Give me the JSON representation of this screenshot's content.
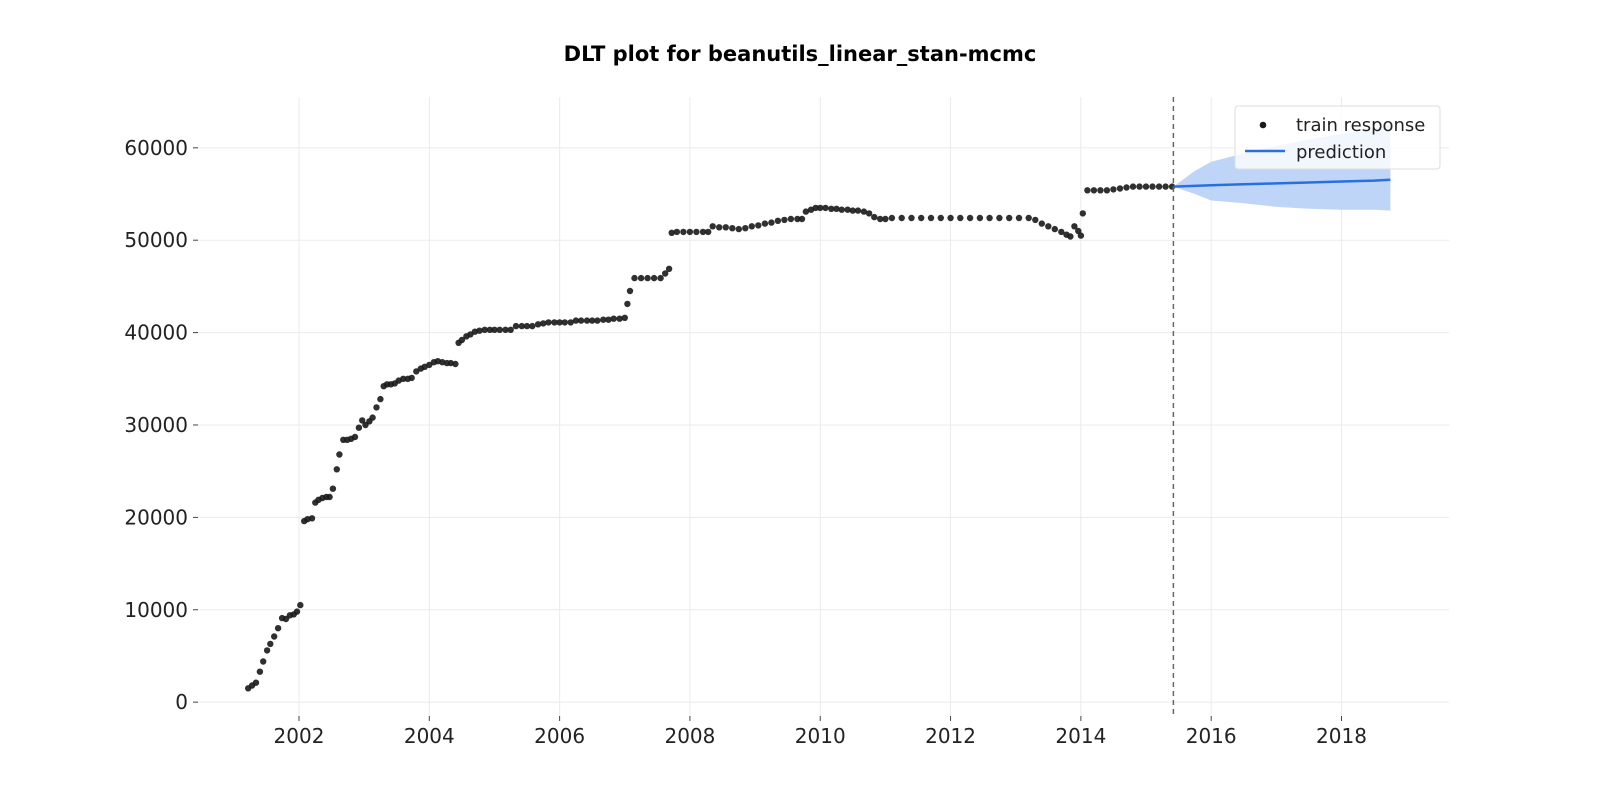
{
  "chart_data": {
    "type": "scatter",
    "title": "DLT plot for beanutils_linear_stan-mcmc",
    "xlabel": "",
    "ylabel": "",
    "xlim": [
      2000.45,
      2019.65
    ],
    "ylim": [
      -1500,
      65500
    ],
    "x_ticks": [
      2002,
      2004,
      2006,
      2008,
      2010,
      2012,
      2014,
      2016,
      2018
    ],
    "x_tick_labels": [
      "2002",
      "2004",
      "2006",
      "2008",
      "2010",
      "2012",
      "2014",
      "2016",
      "2018"
    ],
    "y_ticks": [
      0,
      10000,
      20000,
      30000,
      40000,
      50000,
      60000
    ],
    "y_tick_labels": [
      "0",
      "10000",
      "20000",
      "30000",
      "40000",
      "50000",
      "60000"
    ],
    "grid": true,
    "legend": {
      "position": "top-right"
    },
    "train_end": 2015.42,
    "series": [
      {
        "name": "train response",
        "kind": "scatter",
        "color": "#1a1a1a",
        "points": [
          [
            2001.22,
            1500
          ],
          [
            2001.28,
            1800
          ],
          [
            2001.34,
            2100
          ],
          [
            2001.4,
            3300
          ],
          [
            2001.45,
            4400
          ],
          [
            2001.51,
            5600
          ],
          [
            2001.56,
            6300
          ],
          [
            2001.62,
            7100
          ],
          [
            2001.68,
            8000
          ],
          [
            2001.74,
            9100
          ],
          [
            2001.8,
            9000
          ],
          [
            2001.86,
            9400
          ],
          [
            2001.92,
            9500
          ],
          [
            2001.97,
            9800
          ],
          [
            2002.02,
            10500
          ],
          [
            2002.08,
            19600
          ],
          [
            2002.13,
            19800
          ],
          [
            2002.2,
            19900
          ],
          [
            2002.25,
            21600
          ],
          [
            2002.3,
            21900
          ],
          [
            2002.36,
            22100
          ],
          [
            2002.42,
            22200
          ],
          [
            2002.47,
            22200
          ],
          [
            2002.52,
            23100
          ],
          [
            2002.58,
            25200
          ],
          [
            2002.62,
            26800
          ],
          [
            2002.68,
            28400
          ],
          [
            2002.74,
            28400
          ],
          [
            2002.8,
            28500
          ],
          [
            2002.86,
            28700
          ],
          [
            2002.92,
            29700
          ],
          [
            2002.97,
            30500
          ],
          [
            2003.02,
            30000
          ],
          [
            2003.08,
            30400
          ],
          [
            2003.13,
            30800
          ],
          [
            2003.19,
            31900
          ],
          [
            2003.25,
            32800
          ],
          [
            2003.3,
            34200
          ],
          [
            2003.35,
            34400
          ],
          [
            2003.41,
            34400
          ],
          [
            2003.47,
            34500
          ],
          [
            2003.53,
            34800
          ],
          [
            2003.6,
            35000
          ],
          [
            2003.67,
            35000
          ],
          [
            2003.73,
            35100
          ],
          [
            2003.8,
            35800
          ],
          [
            2003.87,
            36100
          ],
          [
            2003.93,
            36300
          ],
          [
            2004.0,
            36500
          ],
          [
            2004.07,
            36800
          ],
          [
            2004.13,
            36900
          ],
          [
            2004.2,
            36800
          ],
          [
            2004.27,
            36700
          ],
          [
            2004.33,
            36700
          ],
          [
            2004.4,
            36600
          ],
          [
            2004.45,
            38900
          ],
          [
            2004.5,
            39200
          ],
          [
            2004.57,
            39600
          ],
          [
            2004.63,
            39800
          ],
          [
            2004.7,
            40100
          ],
          [
            2004.77,
            40200
          ],
          [
            2004.85,
            40300
          ],
          [
            2004.93,
            40300
          ],
          [
            2005.0,
            40300
          ],
          [
            2005.08,
            40300
          ],
          [
            2005.17,
            40300
          ],
          [
            2005.25,
            40300
          ],
          [
            2005.33,
            40700
          ],
          [
            2005.42,
            40700
          ],
          [
            2005.5,
            40700
          ],
          [
            2005.58,
            40700
          ],
          [
            2005.67,
            40900
          ],
          [
            2005.75,
            41000
          ],
          [
            2005.83,
            41100
          ],
          [
            2005.92,
            41100
          ],
          [
            2006.0,
            41100
          ],
          [
            2006.08,
            41100
          ],
          [
            2006.17,
            41100
          ],
          [
            2006.25,
            41300
          ],
          [
            2006.33,
            41300
          ],
          [
            2006.42,
            41300
          ],
          [
            2006.5,
            41300
          ],
          [
            2006.58,
            41300
          ],
          [
            2006.67,
            41400
          ],
          [
            2006.75,
            41400
          ],
          [
            2006.83,
            41500
          ],
          [
            2006.92,
            41500
          ],
          [
            2007.0,
            41600
          ],
          [
            2007.04,
            43100
          ],
          [
            2007.08,
            44500
          ],
          [
            2007.15,
            45900
          ],
          [
            2007.25,
            45900
          ],
          [
            2007.35,
            45900
          ],
          [
            2007.45,
            45900
          ],
          [
            2007.55,
            45900
          ],
          [
            2007.62,
            46400
          ],
          [
            2007.68,
            46900
          ],
          [
            2007.72,
            50800
          ],
          [
            2007.8,
            50900
          ],
          [
            2007.9,
            50900
          ],
          [
            2008.0,
            50900
          ],
          [
            2008.1,
            50900
          ],
          [
            2008.2,
            50900
          ],
          [
            2008.28,
            50900
          ],
          [
            2008.35,
            51500
          ],
          [
            2008.45,
            51400
          ],
          [
            2008.55,
            51400
          ],
          [
            2008.65,
            51300
          ],
          [
            2008.75,
            51200
          ],
          [
            2008.85,
            51300
          ],
          [
            2008.95,
            51500
          ],
          [
            2009.05,
            51600
          ],
          [
            2009.15,
            51800
          ],
          [
            2009.25,
            51900
          ],
          [
            2009.35,
            52100
          ],
          [
            2009.45,
            52200
          ],
          [
            2009.55,
            52300
          ],
          [
            2009.65,
            52300
          ],
          [
            2009.72,
            52300
          ],
          [
            2009.78,
            53100
          ],
          [
            2009.86,
            53300
          ],
          [
            2009.93,
            53500
          ],
          [
            2010.0,
            53500
          ],
          [
            2010.08,
            53500
          ],
          [
            2010.17,
            53400
          ],
          [
            2010.25,
            53400
          ],
          [
            2010.33,
            53300
          ],
          [
            2010.42,
            53300
          ],
          [
            2010.5,
            53200
          ],
          [
            2010.58,
            53200
          ],
          [
            2010.67,
            53100
          ],
          [
            2010.75,
            52900
          ],
          [
            2010.83,
            52500
          ],
          [
            2010.92,
            52300
          ],
          [
            2011.0,
            52300
          ],
          [
            2011.1,
            52400
          ],
          [
            2011.25,
            52400
          ],
          [
            2011.4,
            52400
          ],
          [
            2011.55,
            52400
          ],
          [
            2011.7,
            52400
          ],
          [
            2011.85,
            52400
          ],
          [
            2012.0,
            52400
          ],
          [
            2012.15,
            52400
          ],
          [
            2012.3,
            52400
          ],
          [
            2012.45,
            52400
          ],
          [
            2012.6,
            52400
          ],
          [
            2012.75,
            52400
          ],
          [
            2012.9,
            52400
          ],
          [
            2013.05,
            52400
          ],
          [
            2013.2,
            52400
          ],
          [
            2013.3,
            52200
          ],
          [
            2013.4,
            51800
          ],
          [
            2013.5,
            51500
          ],
          [
            2013.6,
            51200
          ],
          [
            2013.7,
            50900
          ],
          [
            2013.78,
            50600
          ],
          [
            2013.84,
            50400
          ],
          [
            2013.9,
            51500
          ],
          [
            2013.96,
            51000
          ],
          [
            2014.0,
            50500
          ],
          [
            2014.03,
            52900
          ],
          [
            2014.1,
            55400
          ],
          [
            2014.2,
            55400
          ],
          [
            2014.3,
            55400
          ],
          [
            2014.4,
            55400
          ],
          [
            2014.5,
            55500
          ],
          [
            2014.6,
            55600
          ],
          [
            2014.7,
            55700
          ],
          [
            2014.8,
            55800
          ],
          [
            2014.9,
            55800
          ],
          [
            2015.0,
            55800
          ],
          [
            2015.1,
            55800
          ],
          [
            2015.2,
            55800
          ],
          [
            2015.3,
            55800
          ],
          [
            2015.4,
            55800
          ]
        ]
      },
      {
        "name": "prediction",
        "kind": "line",
        "color": "#2a6fe0",
        "x": [
          2015.42,
          2016.0,
          2016.5,
          2017.0,
          2017.5,
          2018.0,
          2018.5,
          2018.75
        ],
        "y": [
          55800,
          55950,
          56050,
          56150,
          56250,
          56350,
          56450,
          56550
        ]
      }
    ],
    "band": {
      "color": "#bcd3f7",
      "x": [
        2015.42,
        2015.75,
        2016.0,
        2016.5,
        2017.0,
        2017.5,
        2018.0,
        2018.5,
        2018.75
      ],
      "upper": [
        55800,
        57500,
        58500,
        59400,
        60200,
        60900,
        61500,
        62100,
        62500
      ],
      "lower": [
        55800,
        55000,
        54300,
        54000,
        53600,
        53400,
        53300,
        53300,
        53200
      ]
    }
  }
}
